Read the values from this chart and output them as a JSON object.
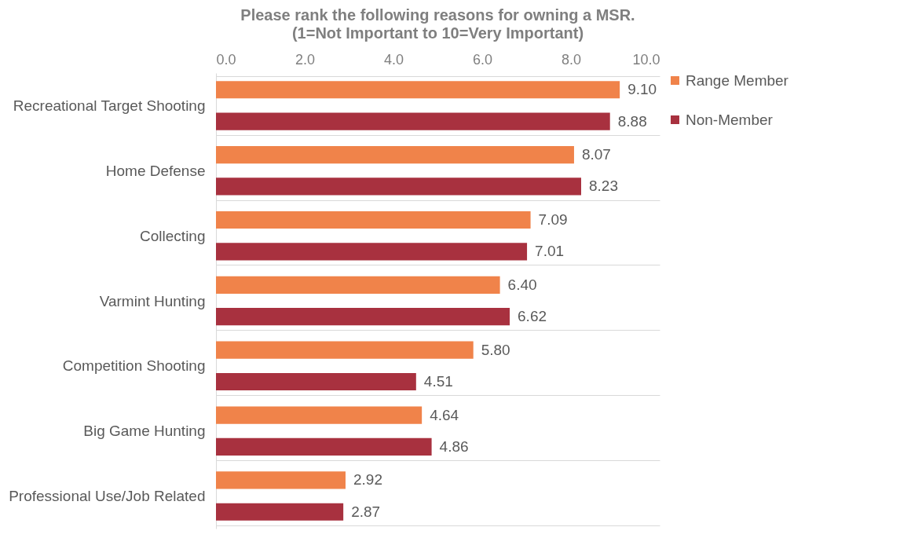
{
  "chart_data": {
    "type": "bar",
    "orientation": "horizontal",
    "title": "Please rank the following reasons for owning a MSR.",
    "subtitle": "(1=Not Important to 10=Very Important)",
    "categories": [
      "Recreational Target Shooting",
      "Home Defense",
      "Collecting",
      "Varmint Hunting",
      "Competition Shooting",
      "Big Game Hunting",
      "Professional Use/Job Related"
    ],
    "series": [
      {
        "name": "Range Member",
        "color": "#f0834a",
        "values": [
          9.1,
          8.07,
          7.09,
          6.4,
          5.8,
          4.64,
          2.92
        ],
        "value_labels": [
          "9.10",
          "8.07",
          "7.09",
          "6.40",
          "5.80",
          "4.64",
          "2.92"
        ]
      },
      {
        "name": "Non-Member",
        "color": "#a8313f",
        "values": [
          8.88,
          8.23,
          7.01,
          6.62,
          4.51,
          4.86,
          2.87
        ],
        "value_labels": [
          "8.88",
          "8.23",
          "7.01",
          "6.62",
          "4.51",
          "4.86",
          "2.87"
        ]
      }
    ],
    "xlim": [
      0,
      10
    ],
    "xticks": [
      {
        "value": 0,
        "label": "0.0"
      },
      {
        "value": 2,
        "label": "2.0"
      },
      {
        "value": 4,
        "label": "4.0"
      },
      {
        "value": 6,
        "label": "6.0"
      },
      {
        "value": 8,
        "label": "8.0"
      },
      {
        "value": 10,
        "label": "10.0"
      }
    ],
    "grid": "y",
    "legend": "right"
  }
}
